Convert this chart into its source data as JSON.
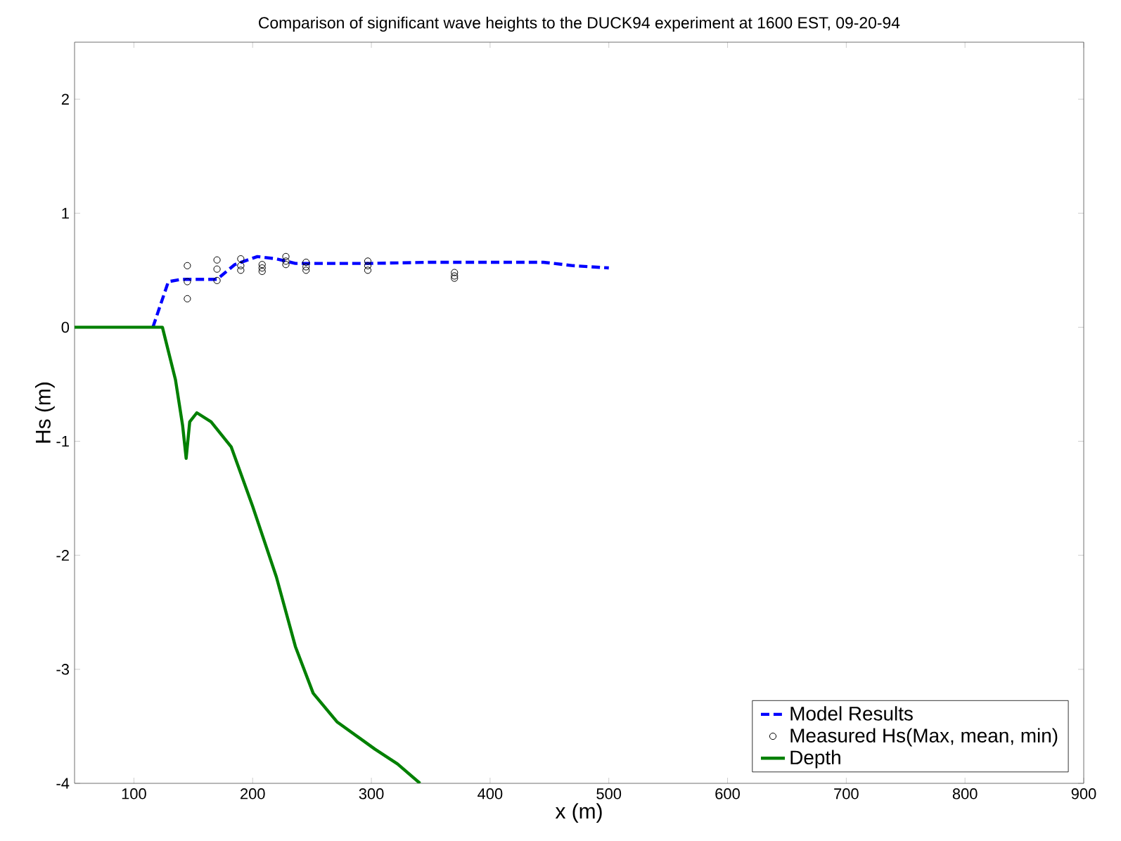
{
  "chart_data": {
    "type": "line",
    "title": "Comparison of significant wave heights to the DUCK94 experiment at 1600 EST, 09-20-94",
    "xlabel": "x (m)",
    "ylabel": "Hs (m)",
    "xlim": [
      50,
      900
    ],
    "ylim": [
      -4,
      2.5
    ],
    "xticks": [
      100,
      200,
      300,
      400,
      500,
      600,
      700,
      800,
      900
    ],
    "yticks": [
      -4,
      -3,
      -2,
      -1,
      0,
      1,
      2
    ],
    "grid": false,
    "legend": "bottom right",
    "series": [
      {
        "name": "Model Results",
        "type": "line",
        "color": "#0000ff",
        "line_style": "dashed",
        "marker": "none",
        "x": [
          116,
          129,
          140,
          170,
          185,
          204,
          220,
          236,
          300,
          350,
          445,
          470,
          500
        ],
        "values": [
          0,
          0.4,
          0.42,
          0.42,
          0.55,
          0.62,
          0.6,
          0.56,
          0.56,
          0.57,
          0.57,
          0.54,
          0.52
        ]
      },
      {
        "name": "Measured Hs(Max, mean, min)",
        "type": "scatter",
        "color": "#000000",
        "marker": "circle",
        "x": [
          145,
          145,
          145,
          170,
          170,
          170,
          190,
          190,
          190,
          208,
          208,
          208,
          228,
          228,
          228,
          245,
          245,
          245,
          297,
          297,
          297,
          370,
          370,
          370
        ],
        "values": [
          0.54,
          0.4,
          0.25,
          0.59,
          0.51,
          0.41,
          0.6,
          0.54,
          0.5,
          0.55,
          0.52,
          0.49,
          0.62,
          0.58,
          0.55,
          0.57,
          0.53,
          0.5,
          0.58,
          0.54,
          0.5,
          0.48,
          0.45,
          0.43
        ]
      },
      {
        "name": "Depth",
        "type": "line",
        "color": "#008000",
        "line_style": "solid",
        "marker": "none",
        "x": [
          50,
          124,
          135,
          141,
          144,
          147,
          153,
          165,
          182,
          200,
          220,
          236,
          251,
          271,
          303,
          322,
          341
        ],
        "values": [
          0,
          0,
          -0.46,
          -0.86,
          -1.15,
          -0.83,
          -0.75,
          -0.83,
          -1.05,
          -1.57,
          -2.19,
          -2.8,
          -3.21,
          -3.46,
          -3.7,
          -3.83,
          -4.0
        ]
      }
    ]
  }
}
